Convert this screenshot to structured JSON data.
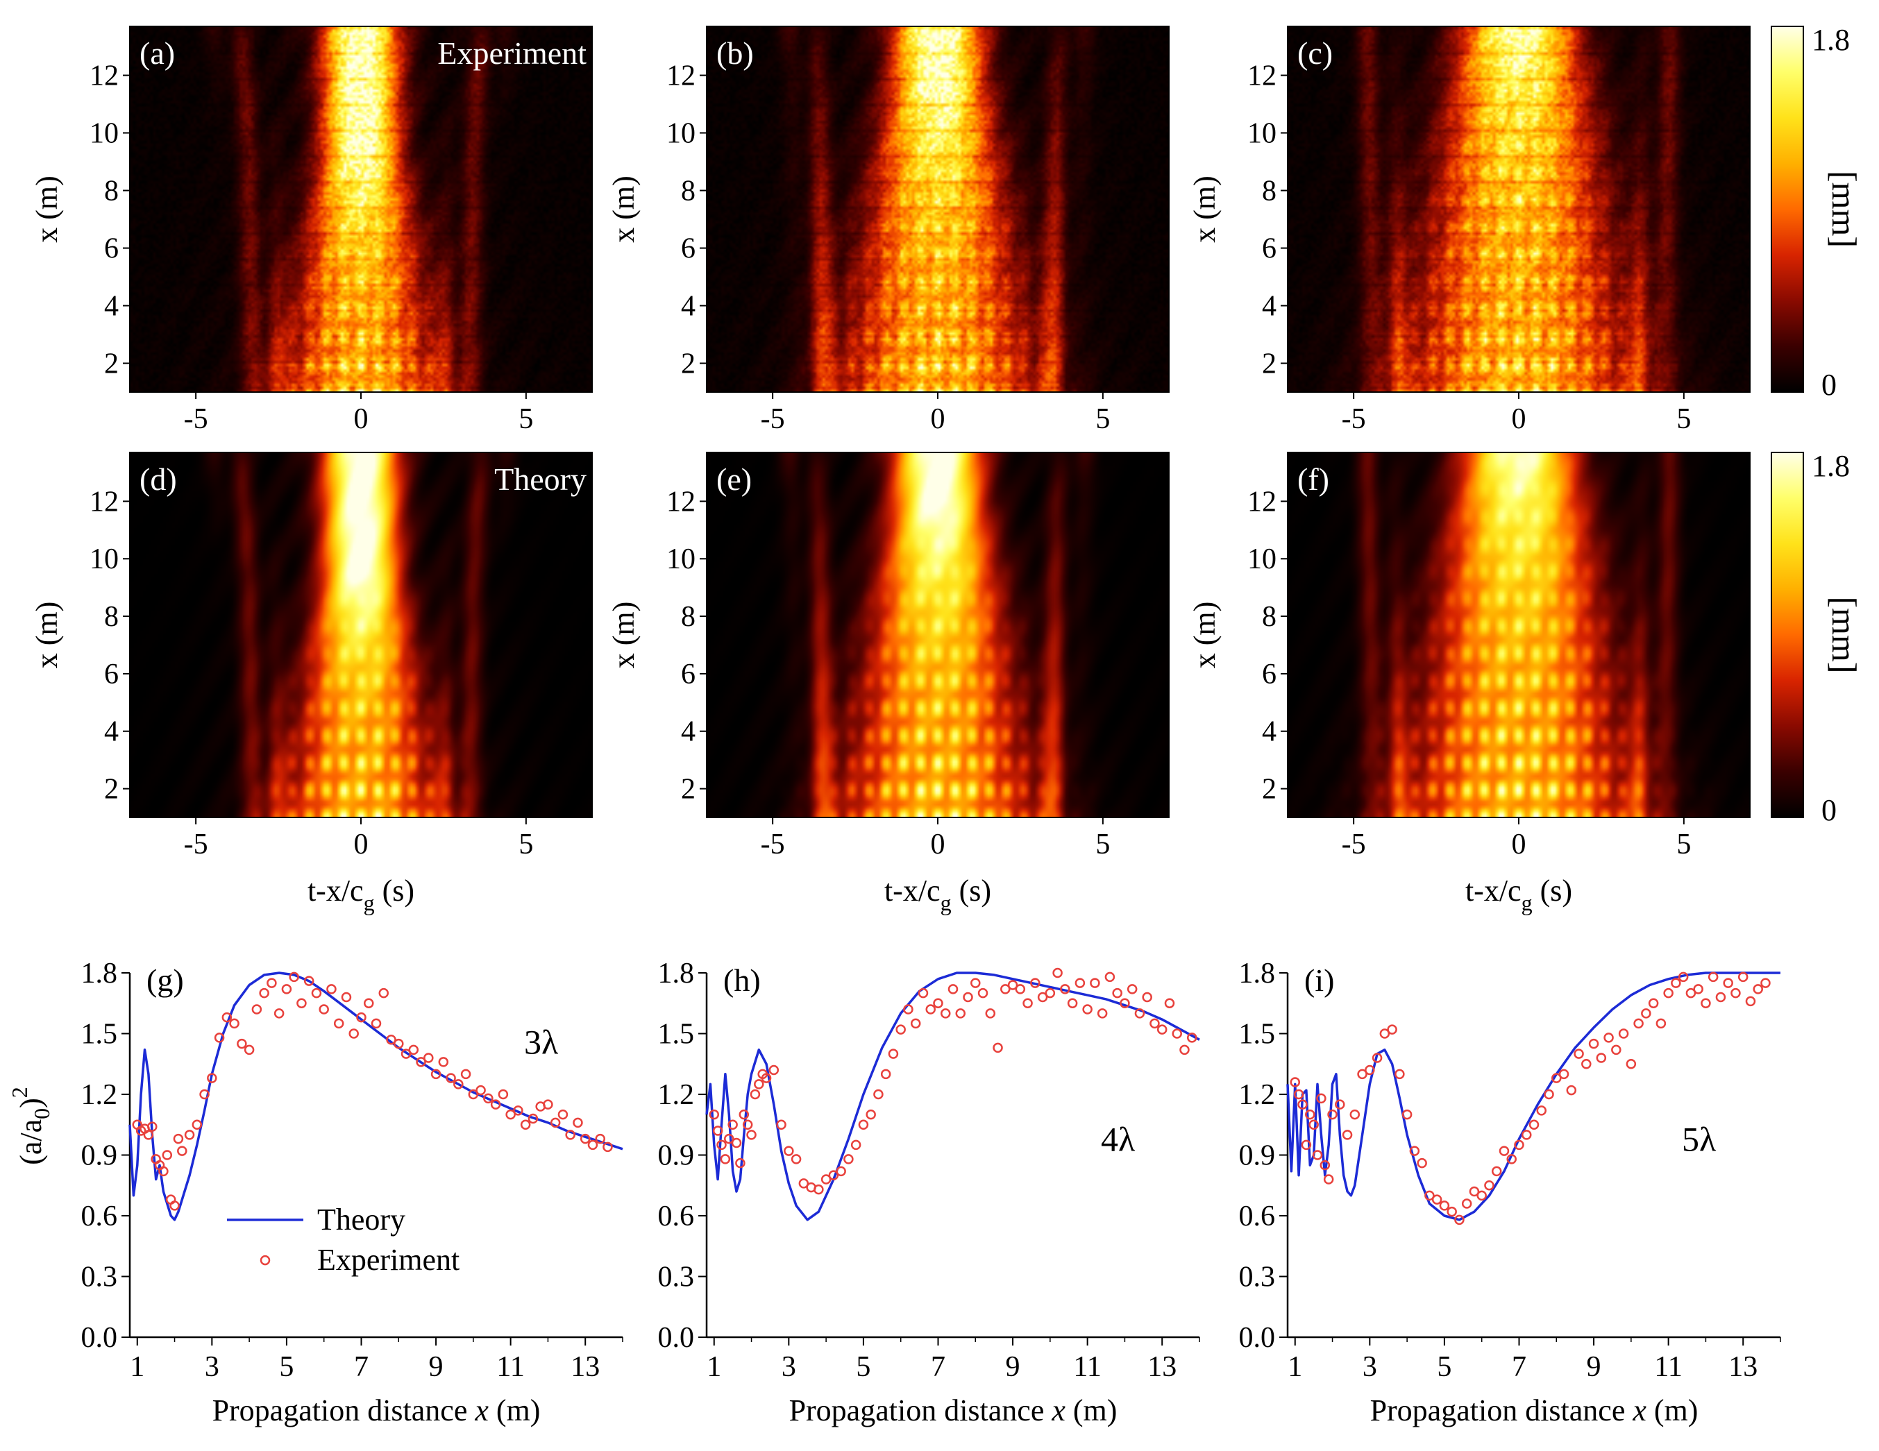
{
  "colors": {
    "theory_line": "#1c2bd6",
    "experiment_marker": "#e8413c",
    "colormap": [
      "#000000",
      "#3a0000",
      "#8a0a00",
      "#d82400",
      "#ff6a00",
      "#ffb000",
      "#ffe21a",
      "#ffff6a",
      "#ffffe8"
    ]
  },
  "chart_data": [
    {
      "id": "a",
      "type": "heatmap",
      "panel_label": "(a)",
      "corner_label": "Experiment",
      "ylabel": "x (m)",
      "xlabel": "",
      "xlim": [
        -7,
        7
      ],
      "ylim": [
        1,
        13.7
      ],
      "xticks": [
        -5,
        0,
        5
      ],
      "yticks": [
        2,
        4,
        6,
        8,
        10,
        12
      ],
      "xtick_labels": [
        "-5",
        "0",
        "5"
      ],
      "ytick_labels": [
        "2",
        "4",
        "6",
        "8",
        "10",
        "12"
      ],
      "n_pulses": 3,
      "field_max": 1.8,
      "experimental": true
    },
    {
      "id": "b",
      "type": "heatmap",
      "panel_label": "(b)",
      "corner_label": "",
      "ylabel": "x (m)",
      "xlabel": "",
      "xlim": [
        -7,
        7
      ],
      "ylim": [
        1,
        13.7
      ],
      "xticks": [
        -5,
        0,
        5
      ],
      "yticks": [
        2,
        4,
        6,
        8,
        10,
        12
      ],
      "xtick_labels": [
        "-5",
        "0",
        "5"
      ],
      "ytick_labels": [
        "2",
        "4",
        "6",
        "8",
        "10",
        "12"
      ],
      "n_pulses": 4,
      "field_max": 1.8,
      "experimental": true
    },
    {
      "id": "c",
      "type": "heatmap",
      "panel_label": "(c)",
      "corner_label": "",
      "ylabel": "x (m)",
      "xlabel": "",
      "xlim": [
        -7,
        7
      ],
      "ylim": [
        1,
        13.7
      ],
      "xticks": [
        -5,
        0,
        5
      ],
      "yticks": [
        2,
        4,
        6,
        8,
        10,
        12
      ],
      "xtick_labels": [
        "-5",
        "0",
        "5"
      ],
      "ytick_labels": [
        "2",
        "4",
        "6",
        "8",
        "10",
        "12"
      ],
      "n_pulses": 5,
      "field_max": 1.8,
      "experimental": true
    },
    {
      "id": "d",
      "type": "heatmap",
      "panel_label": "(d)",
      "corner_label": "Theory",
      "ylabel": "x (m)",
      "xlabel": "t-x/c_g (s)",
      "xlim": [
        -7,
        7
      ],
      "ylim": [
        1,
        13.7
      ],
      "xticks": [
        -5,
        0,
        5
      ],
      "yticks": [
        2,
        4,
        6,
        8,
        10,
        12
      ],
      "xtick_labels": [
        "-5",
        "0",
        "5"
      ],
      "ytick_labels": [
        "2",
        "4",
        "6",
        "8",
        "10",
        "12"
      ],
      "n_pulses": 3,
      "field_max": 1.8,
      "experimental": false
    },
    {
      "id": "e",
      "type": "heatmap",
      "panel_label": "(e)",
      "corner_label": "",
      "ylabel": "x (m)",
      "xlabel": "t-x/c_g (s)",
      "xlim": [
        -7,
        7
      ],
      "ylim": [
        1,
        13.7
      ],
      "xticks": [
        -5,
        0,
        5
      ],
      "yticks": [
        2,
        4,
        6,
        8,
        10,
        12
      ],
      "xtick_labels": [
        "-5",
        "0",
        "5"
      ],
      "ytick_labels": [
        "2",
        "4",
        "6",
        "8",
        "10",
        "12"
      ],
      "n_pulses": 4,
      "field_max": 1.8,
      "experimental": false
    },
    {
      "id": "f",
      "type": "heatmap",
      "panel_label": "(f)",
      "corner_label": "",
      "ylabel": "x (m)",
      "xlabel": "t-x/c_g (s)",
      "xlim": [
        -7,
        7
      ],
      "ylim": [
        1,
        13.7
      ],
      "xticks": [
        -5,
        0,
        5
      ],
      "yticks": [
        2,
        4,
        6,
        8,
        10,
        12
      ],
      "xtick_labels": [
        "-5",
        "0",
        "5"
      ],
      "ytick_labels": [
        "2",
        "4",
        "6",
        "8",
        "10",
        "12"
      ],
      "n_pulses": 5,
      "field_max": 1.8,
      "experimental": false
    },
    {
      "id": "g",
      "type": "line",
      "panel_label": "(g)",
      "corner_label": "3λ",
      "ylabel": "(a/a0)^2",
      "xlabel": "Propagation distance x (m)",
      "xlim": [
        0.8,
        14
      ],
      "ylim": [
        0,
        1.8
      ],
      "xticks": [
        1,
        3,
        5,
        7,
        9,
        11,
        13
      ],
      "yticks": [
        0,
        0.3,
        0.6,
        0.9,
        1.2,
        1.5,
        1.8
      ],
      "xtick_labels": [
        "1",
        "3",
        "5",
        "7",
        "9",
        "11",
        "13"
      ],
      "ytick_labels": [
        "0.0",
        "0.3",
        "0.6",
        "0.9",
        "1.2",
        "1.5",
        "1.8"
      ],
      "legend": {
        "position": "middle-left",
        "entries": [
          "Theory",
          "Experiment"
        ]
      },
      "series": [
        {
          "name": "Theory",
          "kind": "line",
          "x": [
            0.8,
            0.9,
            1.0,
            1.1,
            1.2,
            1.3,
            1.4,
            1.5,
            1.6,
            1.7,
            1.8,
            1.9,
            2.0,
            2.1,
            2.2,
            2.4,
            2.6,
            2.8,
            3.0,
            3.3,
            3.6,
            4.0,
            4.4,
            4.8,
            5.2,
            5.6,
            6.0,
            6.5,
            7.0,
            7.5,
            8.0,
            8.5,
            9.0,
            9.5,
            10.0,
            10.5,
            11.0,
            11.5,
            12.0,
            12.5,
            13.0,
            13.5,
            14.0
          ],
          "y": [
            1.05,
            0.7,
            0.85,
            1.2,
            1.42,
            1.3,
            1.0,
            0.78,
            0.85,
            0.72,
            0.66,
            0.6,
            0.58,
            0.62,
            0.68,
            0.8,
            0.95,
            1.12,
            1.3,
            1.5,
            1.64,
            1.74,
            1.79,
            1.8,
            1.79,
            1.76,
            1.71,
            1.64,
            1.57,
            1.5,
            1.43,
            1.37,
            1.31,
            1.26,
            1.21,
            1.17,
            1.13,
            1.09,
            1.06,
            1.02,
            0.99,
            0.96,
            0.93
          ]
        },
        {
          "name": "Experiment",
          "kind": "scatter",
          "x": [
            1.0,
            1.1,
            1.2,
            1.3,
            1.4,
            1.5,
            1.6,
            1.7,
            1.8,
            1.9,
            2.0,
            2.1,
            2.2,
            2.4,
            2.6,
            2.8,
            3.0,
            3.2,
            3.4,
            3.6,
            3.8,
            4.0,
            4.2,
            4.4,
            4.6,
            4.8,
            5.0,
            5.2,
            5.4,
            5.6,
            5.8,
            6.0,
            6.2,
            6.4,
            6.6,
            6.8,
            7.0,
            7.2,
            7.4,
            7.6,
            7.8,
            8.0,
            8.2,
            8.4,
            8.6,
            8.8,
            9.0,
            9.2,
            9.4,
            9.6,
            9.8,
            10.0,
            10.2,
            10.4,
            10.6,
            10.8,
            11.0,
            11.2,
            11.4,
            11.6,
            11.8,
            12.0,
            12.2,
            12.4,
            12.6,
            12.8,
            13.0,
            13.2,
            13.4,
            13.6
          ],
          "y": [
            1.05,
            1.02,
            1.03,
            1.0,
            1.04,
            0.88,
            0.85,
            0.82,
            0.9,
            0.68,
            0.65,
            0.98,
            0.92,
            1.0,
            1.05,
            1.2,
            1.28,
            1.48,
            1.58,
            1.55,
            1.45,
            1.42,
            1.62,
            1.7,
            1.75,
            1.6,
            1.72,
            1.78,
            1.65,
            1.76,
            1.7,
            1.62,
            1.72,
            1.55,
            1.68,
            1.5,
            1.58,
            1.65,
            1.55,
            1.7,
            1.47,
            1.45,
            1.4,
            1.42,
            1.36,
            1.38,
            1.3,
            1.36,
            1.28,
            1.25,
            1.3,
            1.2,
            1.22,
            1.18,
            1.15,
            1.2,
            1.1,
            1.12,
            1.05,
            1.08,
            1.14,
            1.15,
            1.06,
            1.1,
            1.0,
            1.06,
            0.98,
            0.95,
            0.98,
            0.94
          ]
        }
      ]
    },
    {
      "id": "h",
      "type": "line",
      "panel_label": "(h)",
      "corner_label": "4λ",
      "ylabel": "",
      "xlabel": "Propagation distance x (m)",
      "xlim": [
        0.8,
        14
      ],
      "ylim": [
        0,
        1.8
      ],
      "xticks": [
        1,
        3,
        5,
        7,
        9,
        11,
        13
      ],
      "yticks": [
        0,
        0.3,
        0.6,
        0.9,
        1.2,
        1.5,
        1.8
      ],
      "xtick_labels": [
        "1",
        "3",
        "5",
        "7",
        "9",
        "11",
        "13"
      ],
      "ytick_labels": [
        "0.0",
        "0.3",
        "0.6",
        "0.9",
        "1.2",
        "1.5",
        "1.8"
      ],
      "series": [
        {
          "name": "",
          "kind": "line",
          "x": [
            0.8,
            0.9,
            1.0,
            1.1,
            1.2,
            1.3,
            1.4,
            1.5,
            1.6,
            1.7,
            1.8,
            1.9,
            2.0,
            2.2,
            2.4,
            2.6,
            2.8,
            3.0,
            3.2,
            3.5,
            3.8,
            4.2,
            4.6,
            5.0,
            5.5,
            6.0,
            6.5,
            7.0,
            7.5,
            8.0,
            8.5,
            9.0,
            9.5,
            10.0,
            10.5,
            11.0,
            11.5,
            12.0,
            12.5,
            13.0,
            13.5,
            14.0
          ],
          "y": [
            1.1,
            1.25,
            0.95,
            0.78,
            1.05,
            1.3,
            1.1,
            0.82,
            0.72,
            0.78,
            1.0,
            1.2,
            1.3,
            1.42,
            1.35,
            1.15,
            0.92,
            0.76,
            0.65,
            0.58,
            0.62,
            0.78,
            0.98,
            1.2,
            1.43,
            1.6,
            1.71,
            1.77,
            1.8,
            1.8,
            1.79,
            1.77,
            1.75,
            1.73,
            1.71,
            1.69,
            1.67,
            1.64,
            1.61,
            1.57,
            1.52,
            1.47
          ]
        },
        {
          "name": "",
          "kind": "scatter",
          "x": [
            1.0,
            1.1,
            1.2,
            1.3,
            1.4,
            1.5,
            1.6,
            1.7,
            1.8,
            1.9,
            2.0,
            2.1,
            2.2,
            2.3,
            2.4,
            2.6,
            2.8,
            3.0,
            3.2,
            3.4,
            3.6,
            3.8,
            4.0,
            4.2,
            4.4,
            4.6,
            4.8,
            5.0,
            5.2,
            5.4,
            5.6,
            5.8,
            6.0,
            6.2,
            6.4,
            6.6,
            6.8,
            7.0,
            7.2,
            7.4,
            7.6,
            7.8,
            8.0,
            8.2,
            8.4,
            8.6,
            8.8,
            9.0,
            9.2,
            9.4,
            9.6,
            9.8,
            10.0,
            10.2,
            10.4,
            10.6,
            10.8,
            11.0,
            11.2,
            11.4,
            11.6,
            11.8,
            12.0,
            12.2,
            12.4,
            12.6,
            12.8,
            13.0,
            13.2,
            13.4,
            13.6,
            13.8
          ],
          "y": [
            1.1,
            1.02,
            0.95,
            0.88,
            0.98,
            1.05,
            0.96,
            0.86,
            1.1,
            1.05,
            1.0,
            1.2,
            1.25,
            1.3,
            1.28,
            1.32,
            1.05,
            0.92,
            0.88,
            0.76,
            0.74,
            0.73,
            0.78,
            0.8,
            0.82,
            0.88,
            0.95,
            1.05,
            1.1,
            1.2,
            1.3,
            1.4,
            1.52,
            1.62,
            1.55,
            1.7,
            1.62,
            1.65,
            1.6,
            1.72,
            1.6,
            1.68,
            1.75,
            1.7,
            1.6,
            1.43,
            1.72,
            1.74,
            1.72,
            1.65,
            1.75,
            1.68,
            1.7,
            1.8,
            1.72,
            1.65,
            1.75,
            1.62,
            1.75,
            1.6,
            1.78,
            1.7,
            1.65,
            1.72,
            1.6,
            1.68,
            1.55,
            1.52,
            1.65,
            1.5,
            1.42,
            1.48
          ]
        }
      ]
    },
    {
      "id": "i",
      "type": "line",
      "panel_label": "(i)",
      "corner_label": "5λ",
      "ylabel": "",
      "xlabel": "Propagation distance x (m)",
      "xlim": [
        0.8,
        14
      ],
      "ylim": [
        0,
        1.8
      ],
      "xticks": [
        1,
        3,
        5,
        7,
        9,
        11,
        13
      ],
      "yticks": [
        0,
        0.3,
        0.6,
        0.9,
        1.2,
        1.5,
        1.8
      ],
      "xtick_labels": [
        "1",
        "3",
        "5",
        "7",
        "9",
        "11",
        "13"
      ],
      "ytick_labels": [
        "0.0",
        "0.3",
        "0.6",
        "0.9",
        "1.2",
        "1.5",
        "1.8"
      ],
      "series": [
        {
          "name": "",
          "kind": "line",
          "x": [
            0.8,
            0.9,
            1.0,
            1.1,
            1.2,
            1.3,
            1.4,
            1.5,
            1.6,
            1.7,
            1.8,
            1.9,
            2.0,
            2.1,
            2.2,
            2.3,
            2.4,
            2.5,
            2.6,
            2.8,
            3.0,
            3.2,
            3.4,
            3.6,
            3.8,
            4.0,
            4.3,
            4.6,
            5.0,
            5.4,
            5.8,
            6.2,
            6.6,
            7.0,
            7.5,
            8.0,
            8.5,
            9.0,
            9.5,
            10.0,
            10.5,
            11.0,
            11.5,
            12.0,
            12.5,
            13.0,
            13.5,
            14.0
          ],
          "y": [
            1.25,
            0.82,
            1.25,
            0.8,
            1.2,
            1.22,
            0.85,
            0.9,
            1.25,
            1.0,
            0.8,
            0.95,
            1.25,
            1.3,
            1.0,
            0.8,
            0.72,
            0.7,
            0.75,
            1.0,
            1.25,
            1.4,
            1.42,
            1.35,
            1.18,
            1.0,
            0.8,
            0.66,
            0.6,
            0.58,
            0.62,
            0.7,
            0.82,
            0.98,
            1.15,
            1.3,
            1.43,
            1.53,
            1.62,
            1.69,
            1.74,
            1.77,
            1.79,
            1.8,
            1.8,
            1.8,
            1.8,
            1.8
          ]
        },
        {
          "name": "",
          "kind": "scatter",
          "x": [
            1.0,
            1.1,
            1.2,
            1.3,
            1.4,
            1.5,
            1.6,
            1.7,
            1.8,
            1.9,
            2.0,
            2.2,
            2.4,
            2.6,
            2.8,
            3.0,
            3.2,
            3.4,
            3.6,
            3.8,
            4.0,
            4.2,
            4.4,
            4.6,
            4.8,
            5.0,
            5.2,
            5.4,
            5.6,
            5.8,
            6.0,
            6.2,
            6.4,
            6.6,
            6.8,
            7.0,
            7.2,
            7.4,
            7.6,
            7.8,
            8.0,
            8.2,
            8.4,
            8.6,
            8.8,
            9.0,
            9.2,
            9.4,
            9.6,
            9.8,
            10.0,
            10.2,
            10.4,
            10.6,
            10.8,
            11.0,
            11.2,
            11.4,
            11.6,
            11.8,
            12.0,
            12.2,
            12.4,
            12.6,
            12.8,
            13.0,
            13.2,
            13.4,
            13.6
          ],
          "y": [
            1.26,
            1.2,
            1.15,
            0.95,
            1.1,
            1.05,
            0.9,
            1.18,
            0.85,
            0.78,
            1.1,
            1.15,
            1.0,
            1.1,
            1.3,
            1.32,
            1.38,
            1.5,
            1.52,
            1.3,
            1.1,
            0.92,
            0.86,
            0.7,
            0.68,
            0.65,
            0.62,
            0.58,
            0.66,
            0.72,
            0.7,
            0.75,
            0.82,
            0.92,
            0.88,
            0.95,
            1.0,
            1.05,
            1.12,
            1.2,
            1.28,
            1.3,
            1.22,
            1.4,
            1.35,
            1.45,
            1.38,
            1.48,
            1.42,
            1.5,
            1.35,
            1.55,
            1.6,
            1.65,
            1.55,
            1.7,
            1.75,
            1.78,
            1.7,
            1.72,
            1.65,
            1.78,
            1.68,
            1.75,
            1.7,
            1.78,
            1.66,
            1.72,
            1.75
          ]
        }
      ]
    }
  ],
  "colorbars": [
    {
      "id": "cb1",
      "max_label": "1.8",
      "min_label": "0",
      "unit_label": "[mm]"
    },
    {
      "id": "cb2",
      "max_label": "1.8",
      "min_label": "0",
      "unit_label": "[mm]"
    }
  ]
}
